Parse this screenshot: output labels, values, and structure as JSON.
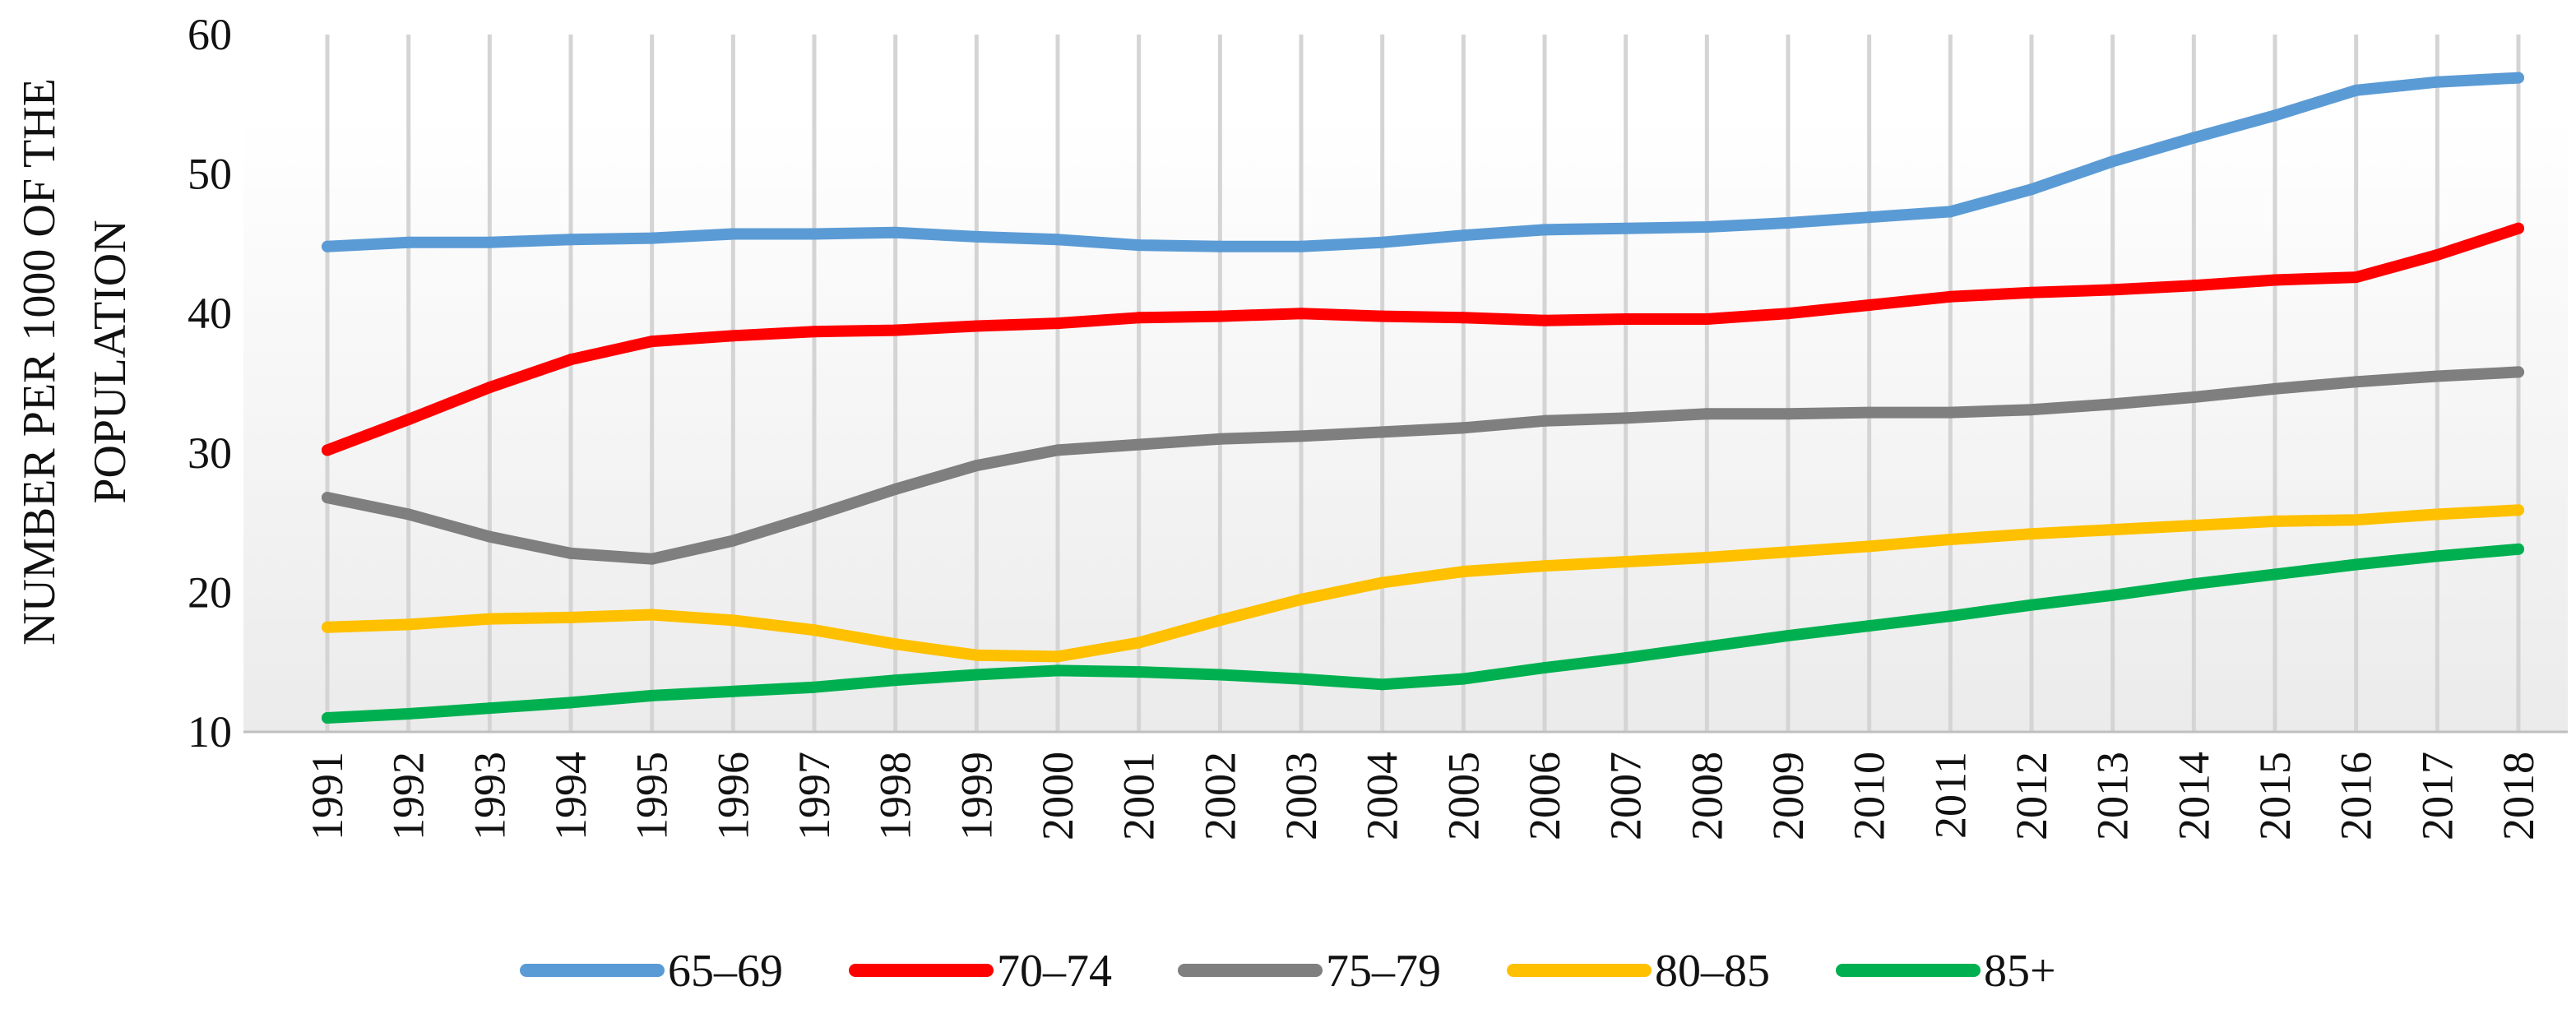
{
  "chart_data": {
    "type": "line",
    "title": "",
    "xlabel": "",
    "ylabel_lines": [
      "NUMBER PER 1000 OF THE",
      "POPULATION"
    ],
    "ylim": [
      10,
      60
    ],
    "yticks": [
      "10",
      "20",
      "30",
      "40",
      "50",
      "60"
    ],
    "grid": "vertical",
    "legend_position": "bottom",
    "categories": [
      "1991",
      "1992",
      "1993",
      "1994",
      "1995",
      "1996",
      "1997",
      "1998",
      "1999",
      "2000",
      "2001",
      "2002",
      "2003",
      "2004",
      "2005",
      "2006",
      "2007",
      "2008",
      "2009",
      "2010",
      "2011",
      "2012",
      "2013",
      "2014",
      "2015",
      "2016",
      "2017",
      "2018"
    ],
    "series": [
      {
        "name": "65–69",
        "color": "#5b9bd5",
        "values": [
          44.8,
          45.1,
          45.1,
          45.3,
          45.4,
          45.7,
          45.7,
          45.8,
          45.5,
          45.3,
          44.9,
          44.8,
          44.8,
          45.1,
          45.6,
          46.0,
          46.1,
          46.2,
          46.5,
          46.9,
          47.3,
          48.9,
          50.9,
          52.6,
          54.2,
          56.0,
          56.6,
          56.9
        ]
      },
      {
        "name": "70–74",
        "color": "#ff0000",
        "values": [
          30.2,
          32.4,
          34.7,
          36.7,
          38.0,
          38.4,
          38.7,
          38.8,
          39.1,
          39.3,
          39.7,
          39.8,
          40.0,
          39.8,
          39.7,
          39.5,
          39.6,
          39.6,
          40.0,
          40.6,
          41.2,
          41.5,
          41.7,
          42.0,
          42.4,
          42.6,
          44.2,
          46.1
        ]
      },
      {
        "name": "75–79",
        "color": "#7f7f7f",
        "values": [
          26.8,
          25.6,
          24.0,
          22.8,
          22.4,
          23.7,
          25.5,
          27.4,
          29.1,
          30.2,
          30.6,
          31.0,
          31.2,
          31.5,
          31.8,
          32.3,
          32.5,
          32.8,
          32.8,
          32.9,
          32.9,
          33.1,
          33.5,
          34.0,
          34.6,
          35.1,
          35.5,
          35.8
        ]
      },
      {
        "name": "80–85",
        "color": "#ffc000",
        "values": [
          17.5,
          17.7,
          18.1,
          18.2,
          18.4,
          18.0,
          17.3,
          16.3,
          15.5,
          15.4,
          16.4,
          18.0,
          19.5,
          20.7,
          21.5,
          21.9,
          22.2,
          22.5,
          22.9,
          23.3,
          23.8,
          24.2,
          24.5,
          24.8,
          25.1,
          25.2,
          25.6,
          25.9
        ]
      },
      {
        "name": "85+",
        "color": "#00b050",
        "values": [
          11.0,
          11.3,
          11.7,
          12.1,
          12.6,
          12.9,
          13.2,
          13.7,
          14.1,
          14.4,
          14.3,
          14.1,
          13.8,
          13.4,
          13.8,
          14.6,
          15.3,
          16.1,
          16.9,
          17.6,
          18.3,
          19.1,
          19.8,
          20.6,
          21.3,
          22.0,
          22.6,
          23.1
        ]
      }
    ]
  }
}
